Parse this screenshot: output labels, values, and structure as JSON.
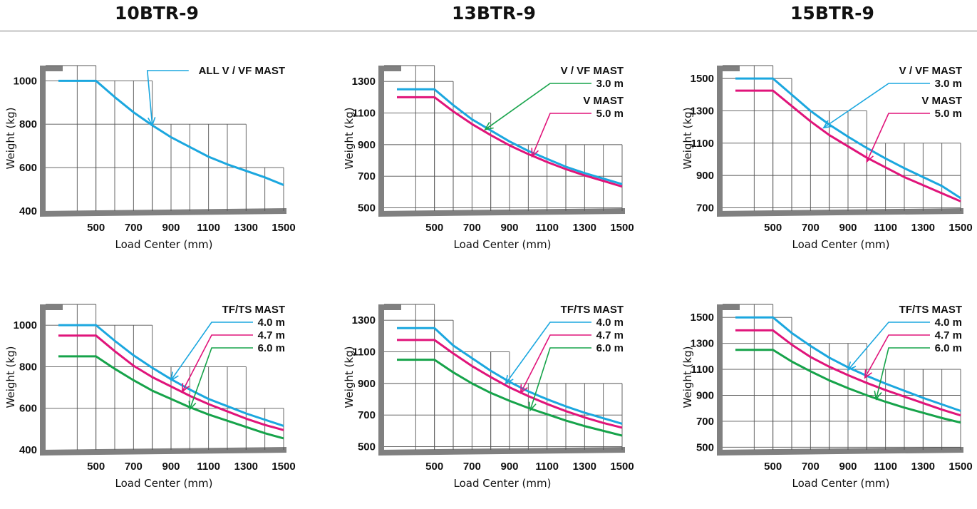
{
  "header": {
    "models": [
      "10BTR-9",
      "13BTR-9",
      "15BTR-9"
    ]
  },
  "colors": {
    "cyan": "#1ba7df",
    "magenta": "#e0147a",
    "green": "#16a34a",
    "axis": "#808080",
    "grid": "#555555"
  },
  "chart_data": [
    {
      "model": "10BTR-9",
      "type": "line",
      "xlabel": "Load Center (mm)",
      "ylabel": "Weight (kg)",
      "xticks": [
        500,
        700,
        900,
        1100,
        1300,
        1500
      ],
      "yticks": [
        400,
        600,
        800,
        1000
      ],
      "xlim": [
        300,
        1500
      ],
      "ylim": [
        400,
        1070
      ],
      "grid_steps": [
        [
          500,
          1070
        ],
        [
          800,
          1000
        ],
        [
          1300,
          800
        ],
        [
          1500,
          600
        ]
      ],
      "series": [
        {
          "color": "cyan",
          "points": [
            [
              300,
              1000
            ],
            [
              500,
              1000
            ],
            [
              600,
              925
            ],
            [
              700,
              855
            ],
            [
              800,
              795
            ],
            [
              900,
              740
            ],
            [
              1000,
              695
            ],
            [
              1100,
              650
            ],
            [
              1200,
              615
            ],
            [
              1300,
              585
            ],
            [
              1400,
              555
            ],
            [
              1500,
              520
            ]
          ]
        }
      ],
      "annotations": [
        {
          "lines": [
            "ALL V / VF  MAST"
          ],
          "color": "cyan",
          "target": [
            800,
            795
          ]
        }
      ]
    },
    {
      "model": "13BTR-9",
      "type": "line",
      "xlabel": "Load Center (mm)",
      "ylabel": "Weight (kg)",
      "xticks": [
        500,
        700,
        900,
        1100,
        1300,
        1500
      ],
      "yticks": [
        500,
        700,
        900,
        1100,
        1300
      ],
      "xlim": [
        300,
        1500
      ],
      "ylim": [
        480,
        1400
      ],
      "grid_steps": [
        [
          500,
          1400
        ],
        [
          600,
          1300
        ],
        [
          800,
          1100
        ],
        [
          1200,
          900
        ],
        [
          1500,
          900
        ]
      ],
      "series": [
        {
          "color": "cyan",
          "points": [
            [
              300,
              1250
            ],
            [
              500,
              1250
            ],
            [
              600,
              1150
            ],
            [
              700,
              1060
            ],
            [
              800,
              990
            ],
            [
              900,
              920
            ],
            [
              1000,
              860
            ],
            [
              1100,
              810
            ],
            [
              1200,
              760
            ],
            [
              1300,
              720
            ],
            [
              1400,
              685
            ],
            [
              1500,
              650
            ]
          ]
        },
        {
          "color": "magenta",
          "points": [
            [
              300,
              1200
            ],
            [
              500,
              1200
            ],
            [
              600,
              1110
            ],
            [
              700,
              1030
            ],
            [
              800,
              960
            ],
            [
              900,
              895
            ],
            [
              1000,
              840
            ],
            [
              1100,
              790
            ],
            [
              1200,
              745
            ],
            [
              1300,
              705
            ],
            [
              1400,
              670
            ],
            [
              1500,
              635
            ]
          ]
        }
      ],
      "annotations": [
        {
          "lines": [
            "V / VF  MAST",
            "3.0 m"
          ],
          "color": "green",
          "target": [
            770,
            995
          ]
        },
        {
          "lines": [
            "V  MAST",
            "5.0 m"
          ],
          "color": "magenta",
          "target": [
            1020,
            825
          ]
        }
      ]
    },
    {
      "model": "15BTR-9",
      "type": "line",
      "xlabel": "Load Center (mm)",
      "ylabel": "Weight (kg)",
      "xticks": [
        500,
        700,
        900,
        1100,
        1300,
        1500
      ],
      "yticks": [
        700,
        900,
        1100,
        1300,
        1500
      ],
      "xlim": [
        300,
        1500
      ],
      "ylim": [
        680,
        1580
      ],
      "grid_steps": [
        [
          500,
          1580
        ],
        [
          600,
          1500
        ],
        [
          800,
          1300
        ],
        [
          1000,
          1300
        ],
        [
          1500,
          1100
        ]
      ],
      "series": [
        {
          "color": "cyan",
          "points": [
            [
              300,
              1500
            ],
            [
              500,
              1500
            ],
            [
              600,
              1400
            ],
            [
              700,
              1300
            ],
            [
              800,
              1215
            ],
            [
              900,
              1140
            ],
            [
              1000,
              1070
            ],
            [
              1100,
              1005
            ],
            [
              1200,
              945
            ],
            [
              1300,
              890
            ],
            [
              1400,
              835
            ],
            [
              1500,
              760
            ]
          ]
        },
        {
          "color": "magenta",
          "points": [
            [
              300,
              1425
            ],
            [
              500,
              1425
            ],
            [
              600,
              1330
            ],
            [
              700,
              1235
            ],
            [
              800,
              1150
            ],
            [
              900,
              1080
            ],
            [
              1000,
              1010
            ],
            [
              1100,
              950
            ],
            [
              1200,
              890
            ],
            [
              1300,
              840
            ],
            [
              1400,
              790
            ],
            [
              1500,
              740
            ]
          ]
        }
      ],
      "annotations": [
        {
          "lines": [
            "V / VF  MAST",
            "3.0 m"
          ],
          "color": "cyan",
          "target": [
            770,
            1195
          ]
        },
        {
          "lines": [
            "V  MAST",
            "5.0 m"
          ],
          "color": "magenta",
          "target": [
            1000,
            985
          ]
        }
      ]
    },
    {
      "model": "10BTR-9",
      "type": "line",
      "xlabel": "Load Center (mm)",
      "ylabel": "Weight (kg)",
      "xticks": [
        500,
        700,
        900,
        1100,
        1300,
        1500
      ],
      "yticks": [
        400,
        600,
        800,
        1000
      ],
      "xlim": [
        300,
        1500
      ],
      "ylim": [
        400,
        1100
      ],
      "grid_steps": [
        [
          500,
          1100
        ],
        [
          800,
          1000
        ],
        [
          900,
          800
        ],
        [
          1300,
          800
        ],
        [
          1500,
          600
        ]
      ],
      "series": [
        {
          "color": "cyan",
          "points": [
            [
              300,
              1000
            ],
            [
              500,
              1000
            ],
            [
              600,
              925
            ],
            [
              700,
              855
            ],
            [
              800,
              795
            ],
            [
              900,
              740
            ],
            [
              1000,
              690
            ],
            [
              1100,
              645
            ],
            [
              1200,
              610
            ],
            [
              1300,
              575
            ],
            [
              1400,
              545
            ],
            [
              1500,
              515
            ]
          ]
        },
        {
          "color": "magenta",
          "points": [
            [
              300,
              950
            ],
            [
              500,
              950
            ],
            [
              600,
              875
            ],
            [
              700,
              805
            ],
            [
              800,
              750
            ],
            [
              900,
              705
            ],
            [
              1000,
              660
            ],
            [
              1100,
              620
            ],
            [
              1200,
              585
            ],
            [
              1300,
              550
            ],
            [
              1400,
              520
            ],
            [
              1500,
              495
            ]
          ]
        },
        {
          "color": "green",
          "points": [
            [
              300,
              850
            ],
            [
              500,
              850
            ],
            [
              600,
              790
            ],
            [
              700,
              735
            ],
            [
              800,
              685
            ],
            [
              900,
              645
            ],
            [
              1000,
              605
            ],
            [
              1100,
              570
            ],
            [
              1200,
              540
            ],
            [
              1300,
              510
            ],
            [
              1400,
              480
            ],
            [
              1500,
              455
            ]
          ]
        }
      ],
      "annotations": [
        {
          "lines": [
            "TF/TS  MAST",
            "4.0 m"
          ],
          "color": "cyan",
          "target": [
            900,
            735
          ]
        },
        {
          "lines": [
            "4.7 m"
          ],
          "color": "magenta",
          "target": [
            960,
            680
          ]
        },
        {
          "lines": [
            "6.0 m"
          ],
          "color": "green",
          "target": [
            1000,
            595
          ]
        }
      ]
    },
    {
      "model": "13BTR-9",
      "type": "line",
      "xlabel": "Load Center (mm)",
      "ylabel": "Weight (kg)",
      "xticks": [
        500,
        700,
        900,
        1100,
        1300,
        1500
      ],
      "yticks": [
        500,
        700,
        900,
        1100,
        1300
      ],
      "xlim": [
        300,
        1500
      ],
      "ylim": [
        480,
        1400
      ],
      "grid_steps": [
        [
          500,
          1400
        ],
        [
          600,
          1300
        ],
        [
          800,
          1100
        ],
        [
          900,
          1100
        ],
        [
          1500,
          900
        ]
      ],
      "series": [
        {
          "color": "cyan",
          "points": [
            [
              300,
              1250
            ],
            [
              500,
              1250
            ],
            [
              600,
              1140
            ],
            [
              700,
              1060
            ],
            [
              800,
              980
            ],
            [
              900,
              910
            ],
            [
              1000,
              850
            ],
            [
              1100,
              800
            ],
            [
              1200,
              755
            ],
            [
              1300,
              715
            ],
            [
              1400,
              680
            ],
            [
              1500,
              645
            ]
          ]
        },
        {
          "color": "magenta",
          "points": [
            [
              300,
              1175
            ],
            [
              500,
              1175
            ],
            [
              600,
              1090
            ],
            [
              700,
              1010
            ],
            [
              800,
              940
            ],
            [
              900,
              875
            ],
            [
              1000,
              820
            ],
            [
              1100,
              770
            ],
            [
              1200,
              725
            ],
            [
              1300,
              685
            ],
            [
              1400,
              650
            ],
            [
              1500,
              620
            ]
          ]
        },
        {
          "color": "green",
          "points": [
            [
              300,
              1050
            ],
            [
              500,
              1050
            ],
            [
              600,
              970
            ],
            [
              700,
              900
            ],
            [
              800,
              840
            ],
            [
              900,
              790
            ],
            [
              1000,
              745
            ],
            [
              1100,
              705
            ],
            [
              1200,
              665
            ],
            [
              1300,
              630
            ],
            [
              1400,
              600
            ],
            [
              1500,
              570
            ]
          ]
        }
      ],
      "annotations": [
        {
          "lines": [
            "TF/TS  MAST",
            "4.0 m"
          ],
          "color": "cyan",
          "target": [
            880,
            900
          ]
        },
        {
          "lines": [
            "4.7 m"
          ],
          "color": "magenta",
          "target": [
            960,
            840
          ]
        },
        {
          "lines": [
            "6.0 m"
          ],
          "color": "green",
          "target": [
            1010,
            730
          ]
        }
      ]
    },
    {
      "model": "15BTR-9",
      "type": "line",
      "xlabel": "Load Center (mm)",
      "ylabel": "Weight (kg)",
      "xticks": [
        500,
        700,
        900,
        1100,
        1300,
        1500
      ],
      "yticks": [
        500,
        700,
        900,
        1100,
        1300,
        1500
      ],
      "xlim": [
        300,
        1500
      ],
      "ylim": [
        480,
        1600
      ],
      "grid_steps": [
        [
          500,
          1600
        ],
        [
          600,
          1500
        ],
        [
          800,
          1300
        ],
        [
          1000,
          1300
        ],
        [
          1300,
          1100
        ],
        [
          1500,
          1100
        ]
      ],
      "series": [
        {
          "color": "cyan",
          "points": [
            [
              300,
              1500
            ],
            [
              500,
              1500
            ],
            [
              600,
              1380
            ],
            [
              700,
              1280
            ],
            [
              800,
              1190
            ],
            [
              900,
              1115
            ],
            [
              1000,
              1050
            ],
            [
              1100,
              990
            ],
            [
              1200,
              935
            ],
            [
              1300,
              880
            ],
            [
              1400,
              830
            ],
            [
              1500,
              780
            ]
          ]
        },
        {
          "color": "magenta",
          "points": [
            [
              300,
              1400
            ],
            [
              500,
              1400
            ],
            [
              600,
              1290
            ],
            [
              700,
              1195
            ],
            [
              800,
              1120
            ],
            [
              900,
              1055
            ],
            [
              1000,
              995
            ],
            [
              1100,
              940
            ],
            [
              1200,
              890
            ],
            [
              1300,
              840
            ],
            [
              1400,
              790
            ],
            [
              1500,
              745
            ]
          ]
        },
        {
          "color": "green",
          "points": [
            [
              300,
              1250
            ],
            [
              500,
              1250
            ],
            [
              600,
              1160
            ],
            [
              700,
              1085
            ],
            [
              800,
              1015
            ],
            [
              900,
              955
            ],
            [
              1000,
              900
            ],
            [
              1100,
              850
            ],
            [
              1200,
              805
            ],
            [
              1300,
              765
            ],
            [
              1400,
              725
            ],
            [
              1500,
              690
            ]
          ]
        }
      ],
      "annotations": [
        {
          "lines": [
            "TF/TS  MAST",
            "4.0 m"
          ],
          "color": "cyan",
          "target": [
            900,
            1095
          ]
        },
        {
          "lines": [
            "4.7 m"
          ],
          "color": "magenta",
          "target": [
            990,
            1035
          ]
        },
        {
          "lines": [
            "6.0 m"
          ],
          "color": "green",
          "target": [
            1050,
            870
          ]
        }
      ]
    }
  ]
}
